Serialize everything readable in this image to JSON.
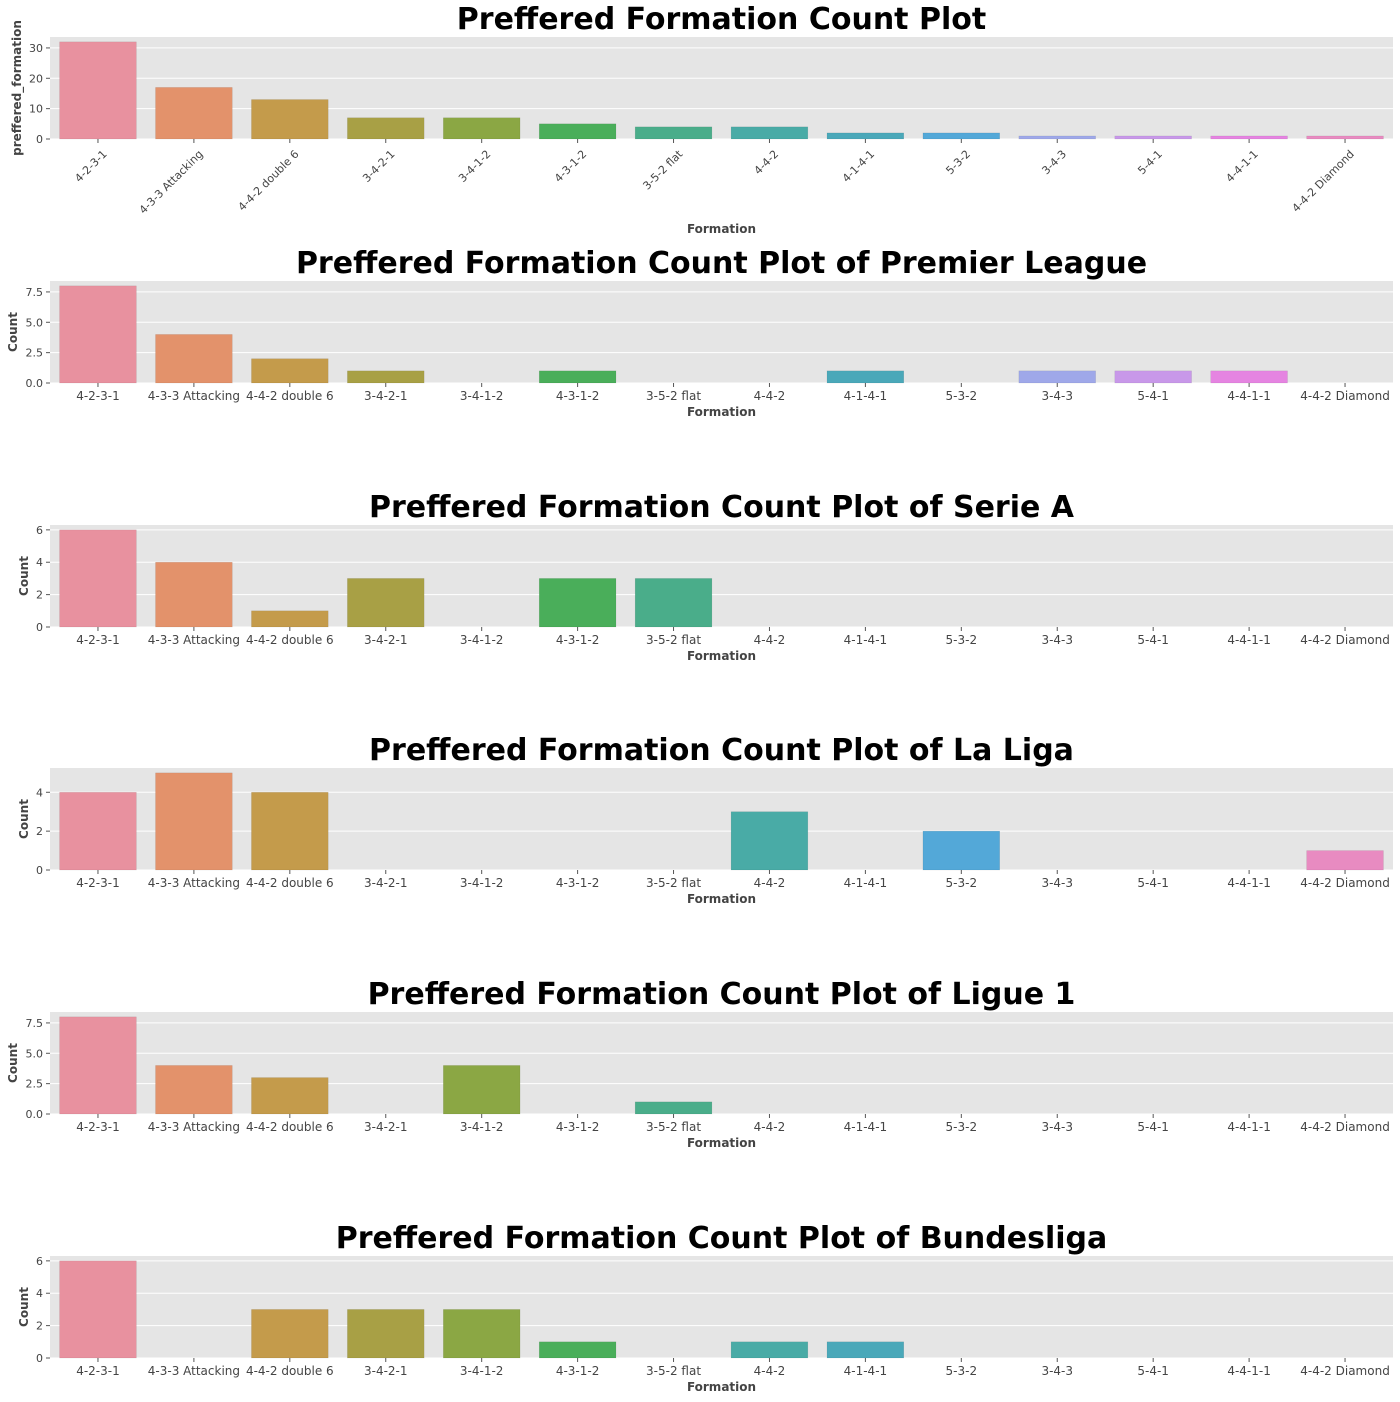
{
  "colors": {
    "panel_bg": "#e5e5e5",
    "grid": "#ffffff",
    "text": "#000000",
    "tick_text": "#444444",
    "bar_palette": [
      "#e8919f",
      "#e3926b",
      "#c49b4b",
      "#a8a045",
      "#8ba744",
      "#4aae5a",
      "#4aad8a",
      "#49aba6",
      "#4aa8b9",
      "#53a8d8",
      "#9fa8e9",
      "#c898e9",
      "#e584e1",
      "#e88bc1"
    ]
  },
  "chart_data": [
    {
      "type": "bar",
      "title": "Preffered Formation Count Plot",
      "xlabel": "Formation",
      "ylabel": "preffered_formation",
      "categories": [
        "4-2-3-1",
        "4-3-3 Attacking",
        "4-4-2 double 6",
        "3-4-2-1",
        "3-4-1-2",
        "4-3-1-2",
        "3-5-2 flat",
        "4-4-2",
        "4-1-4-1",
        "5-3-2",
        "3-4-3",
        "5-4-1",
        "4-4-1-1",
        "4-4-2 Diamond"
      ],
      "values": [
        32,
        17,
        13,
        7,
        7,
        5,
        4,
        4,
        2,
        2,
        1,
        1,
        1,
        1
      ],
      "ylim": [
        0,
        33.6
      ],
      "yticks": [
        "0",
        "10",
        "20",
        "30"
      ],
      "ytick_values": [
        0,
        10,
        20,
        30
      ],
      "grid": true,
      "rotated_xticks": true
    },
    {
      "type": "bar",
      "title": "Preffered Formation Count Plot of Premier League",
      "xlabel": "Formation",
      "ylabel": "Count",
      "categories": [
        "4-2-3-1",
        "4-3-3 Attacking",
        "4-4-2 double 6",
        "3-4-2-1",
        "3-4-1-2",
        "4-3-1-2",
        "3-5-2 flat",
        "4-4-2",
        "4-1-4-1",
        "5-3-2",
        "3-4-3",
        "5-4-1",
        "4-4-1-1",
        "4-4-2 Diamond"
      ],
      "values": [
        8,
        4,
        2,
        1,
        0,
        1,
        0,
        0,
        1,
        0,
        1,
        1,
        1,
        0
      ],
      "ylim": [
        0,
        8.4
      ],
      "yticks": [
        "0.0",
        "2.5",
        "5.0",
        "7.5"
      ],
      "ytick_values": [
        0,
        2.5,
        5,
        7.5
      ],
      "grid": true,
      "rotated_xticks": false
    },
    {
      "type": "bar",
      "title": "Preffered Formation Count Plot of Serie A",
      "xlabel": "Formation",
      "ylabel": "Count",
      "categories": [
        "4-2-3-1",
        "4-3-3 Attacking",
        "4-4-2 double 6",
        "3-4-2-1",
        "3-4-1-2",
        "4-3-1-2",
        "3-5-2 flat",
        "4-4-2",
        "4-1-4-1",
        "5-3-2",
        "3-4-3",
        "5-4-1",
        "4-4-1-1",
        "4-4-2 Diamond"
      ],
      "values": [
        6,
        4,
        1,
        3,
        0,
        3,
        3,
        0,
        0,
        0,
        0,
        0,
        0,
        0
      ],
      "ylim": [
        0,
        6.3
      ],
      "yticks": [
        "0",
        "2",
        "4",
        "6"
      ],
      "ytick_values": [
        0,
        2,
        4,
        6
      ],
      "grid": true,
      "rotated_xticks": false
    },
    {
      "type": "bar",
      "title": "Preffered Formation Count Plot of La Liga",
      "xlabel": "Formation",
      "ylabel": "Count",
      "categories": [
        "4-2-3-1",
        "4-3-3 Attacking",
        "4-4-2 double 6",
        "3-4-2-1",
        "3-4-1-2",
        "4-3-1-2",
        "3-5-2 flat",
        "4-4-2",
        "4-1-4-1",
        "5-3-2",
        "3-4-3",
        "5-4-1",
        "4-4-1-1",
        "4-4-2 Diamond"
      ],
      "values": [
        4,
        5,
        4,
        0,
        0,
        0,
        0,
        3,
        0,
        2,
        0,
        0,
        0,
        1
      ],
      "ylim": [
        0,
        5.25
      ],
      "yticks": [
        "0",
        "2",
        "4"
      ],
      "ytick_values": [
        0,
        2,
        4
      ],
      "grid": true,
      "rotated_xticks": false
    },
    {
      "type": "bar",
      "title": "Preffered Formation Count Plot of Ligue 1",
      "xlabel": "Formation",
      "ylabel": "Count",
      "categories": [
        "4-2-3-1",
        "4-3-3 Attacking",
        "4-4-2 double 6",
        "3-4-2-1",
        "3-4-1-2",
        "4-3-1-2",
        "3-5-2 flat",
        "4-4-2",
        "4-1-4-1",
        "5-3-2",
        "3-4-3",
        "5-4-1",
        "4-4-1-1",
        "4-4-2 Diamond"
      ],
      "values": [
        8,
        4,
        3,
        0,
        4,
        0,
        1,
        0,
        0,
        0,
        0,
        0,
        0,
        0
      ],
      "ylim": [
        0,
        8.4
      ],
      "yticks": [
        "0.0",
        "2.5",
        "5.0",
        "7.5"
      ],
      "ytick_values": [
        0,
        2.5,
        5,
        7.5
      ],
      "grid": true,
      "rotated_xticks": false
    },
    {
      "type": "bar",
      "title": "Preffered Formation Count Plot of Bundesliga",
      "xlabel": "Formation",
      "ylabel": "Count",
      "categories": [
        "4-2-3-1",
        "4-3-3 Attacking",
        "4-4-2 double 6",
        "3-4-2-1",
        "3-4-1-2",
        "4-3-1-2",
        "3-5-2 flat",
        "4-4-2",
        "4-1-4-1",
        "5-3-2",
        "3-4-3",
        "5-4-1",
        "4-4-1-1",
        "4-4-2 Diamond"
      ],
      "values": [
        6,
        0,
        3,
        3,
        3,
        1,
        0,
        1,
        1,
        0,
        0,
        0,
        0,
        0
      ],
      "ylim": [
        0,
        6.3
      ],
      "yticks": [
        "0",
        "2",
        "4",
        "6"
      ],
      "ytick_values": [
        0,
        2,
        4,
        6
      ],
      "grid": true,
      "rotated_xticks": false
    }
  ]
}
